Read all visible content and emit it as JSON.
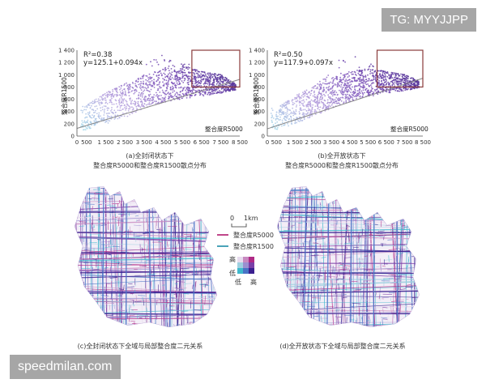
{
  "watermarks": {
    "top": "TG: MYYJJPP",
    "bottom": "speedmilan.com"
  },
  "panels": {
    "a": {
      "caption_line1": "(a)全封闭状态下",
      "caption_line2": "整合度R5000和整合度R1500散点分布"
    },
    "b": {
      "caption_line1": "(b)全开放状态下",
      "caption_line2": "整合度R5000和整合度R1500散点分布"
    },
    "c": {
      "caption": "(c)全封闭状态下全域与局部整合度二元关系"
    },
    "d": {
      "caption": "(d)全开放状态下全域与局部整合度二元关系"
    }
  },
  "map_legend": {
    "scale_zero": "0",
    "scale_unit": "1km",
    "line_r5000": "整合度R5000",
    "line_r1500": "整合度R1500",
    "matrix_high_top": "高",
    "matrix_low_left": "低",
    "matrix_low_bottom": "低",
    "matrix_high_right": "高"
  },
  "colors": {
    "r5000": "#c0468a",
    "r1500": "#4aa3b8",
    "bivariate": [
      "#e8dcef",
      "#c889c0",
      "#b02a86",
      "#9fd0e0",
      "#9b8fd0",
      "#7a3fa8",
      "#3fb8cc",
      "#4a73c6",
      "#3a1f8f"
    ],
    "highlight_box": "#8a3b3b",
    "regression_line": "#888888"
  },
  "chart_data": [
    {
      "type": "scatter",
      "panel": "a",
      "xlabel": "整合度R5000",
      "ylabel": "整合度R1500",
      "xlim": [
        0,
        8500
      ],
      "ylim": [
        0,
        1400
      ],
      "x_ticks": [
        0,
        500,
        1500,
        2500,
        3500,
        4500,
        5500,
        6500,
        7500,
        8500
      ],
      "y_ticks": [
        0,
        200,
        400,
        600,
        800,
        1000,
        1200,
        1400
      ],
      "x_tick_labels": [
        "0",
        "500",
        "1 500",
        "2 500",
        "3 500",
        "4 500",
        "5 500",
        "6 500",
        "7 500",
        "8 500"
      ],
      "y_tick_labels": [
        "0",
        "200",
        "400",
        "600",
        "800",
        "1 000",
        "1 200",
        "1 400"
      ],
      "r2_text": "R²=0.38",
      "equation_text": "y=125.1+0.094x",
      "regression": {
        "intercept": 125.1,
        "slope": 0.094
      },
      "highlight_region": {
        "x": [
          6000,
          8500
        ],
        "y": [
          800,
          1400
        ]
      },
      "point_cloud": {
        "x_range": [
          200,
          8300
        ],
        "upper_envelope": [
          [
            500,
            500
          ],
          [
            1500,
            700
          ],
          [
            2500,
            850
          ],
          [
            3500,
            1000
          ],
          [
            4500,
            1120
          ],
          [
            5500,
            1150
          ],
          [
            6500,
            1050
          ],
          [
            7500,
            1000
          ],
          [
            8300,
            850
          ]
        ],
        "lower_envelope": [
          [
            500,
            100
          ],
          [
            1500,
            200
          ],
          [
            2500,
            300
          ],
          [
            3500,
            450
          ],
          [
            4500,
            550
          ],
          [
            5500,
            600
          ],
          [
            6500,
            650
          ],
          [
            7500,
            700
          ],
          [
            8300,
            750
          ]
        ],
        "peak": [
          4500,
          1350
        ]
      }
    },
    {
      "type": "scatter",
      "panel": "b",
      "xlabel": "整合度R5000",
      "ylabel": "整合度R1500",
      "xlim": [
        0,
        8500
      ],
      "ylim": [
        0,
        1400
      ],
      "x_ticks": [
        0,
        500,
        1500,
        2500,
        3500,
        4500,
        5500,
        6500,
        7500,
        8500
      ],
      "y_ticks": [
        0,
        200,
        400,
        600,
        800,
        1000,
        1200,
        1400
      ],
      "x_tick_labels": [
        "0",
        "500",
        "1 500",
        "2 500",
        "3 500",
        "4 500",
        "5 500",
        "6 500",
        "7 500",
        "8 500"
      ],
      "y_tick_labels": [
        "0",
        "200",
        "400",
        "600",
        "800",
        "1 000",
        "1 200",
        "1 400"
      ],
      "r2_text": "R²=0.50",
      "equation_text": "y=117.9+0.097x",
      "regression": {
        "intercept": 117.9,
        "slope": 0.097
      },
      "highlight_region": {
        "x": [
          6000,
          8500
        ],
        "y": [
          800,
          1400
        ]
      },
      "point_cloud": {
        "x_range": [
          200,
          8300
        ],
        "upper_envelope": [
          [
            500,
            450
          ],
          [
            1500,
            650
          ],
          [
            2500,
            800
          ],
          [
            3500,
            950
          ],
          [
            4500,
            1050
          ],
          [
            5500,
            1100
          ],
          [
            6500,
            1050
          ],
          [
            7500,
            1000
          ],
          [
            8300,
            900
          ]
        ],
        "lower_envelope": [
          [
            500,
            100
          ],
          [
            1500,
            200
          ],
          [
            2500,
            320
          ],
          [
            3500,
            450
          ],
          [
            4500,
            560
          ],
          [
            5500,
            640
          ],
          [
            6500,
            700
          ],
          [
            7500,
            740
          ],
          [
            8300,
            780
          ]
        ],
        "peak": [
          4500,
          1380
        ]
      }
    }
  ]
}
